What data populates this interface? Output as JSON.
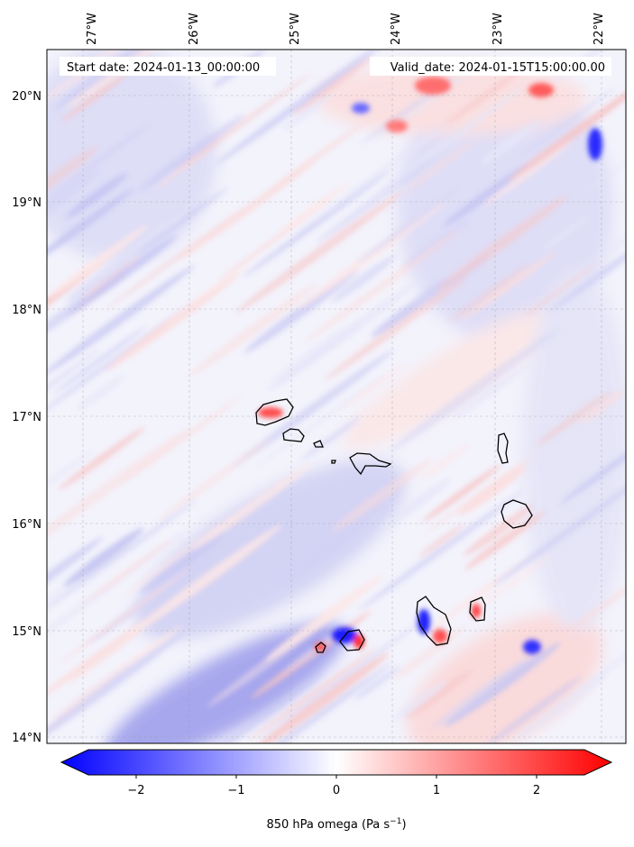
{
  "map": {
    "start_label": "Start date: 2024-01-13_00:00:00",
    "valid_label": "Valid_date: 2024-01-15T15:00:00.00",
    "lon_ticks": [
      "27°W",
      "26°W",
      "25°W",
      "24°W",
      "23°W",
      "22°W"
    ],
    "lat_ticks": [
      "20°N",
      "19°N",
      "18°N",
      "17°N",
      "16°N",
      "15°N",
      "14°N"
    ],
    "field": "850 hPa omega",
    "grid": true
  },
  "colorbar": {
    "label_main": "850 hPa omega (Pa s",
    "label_exp": "−1",
    "label_close": ")",
    "ticks": [
      "−2",
      "−1",
      "0",
      "1",
      "2"
    ],
    "range": [
      -2.6,
      2.6
    ],
    "extend": "both",
    "cmap": "bwr",
    "colors": {
      "negative": "#0000ff",
      "zero": "#ffffff",
      "positive": "#ff0000"
    }
  }
}
